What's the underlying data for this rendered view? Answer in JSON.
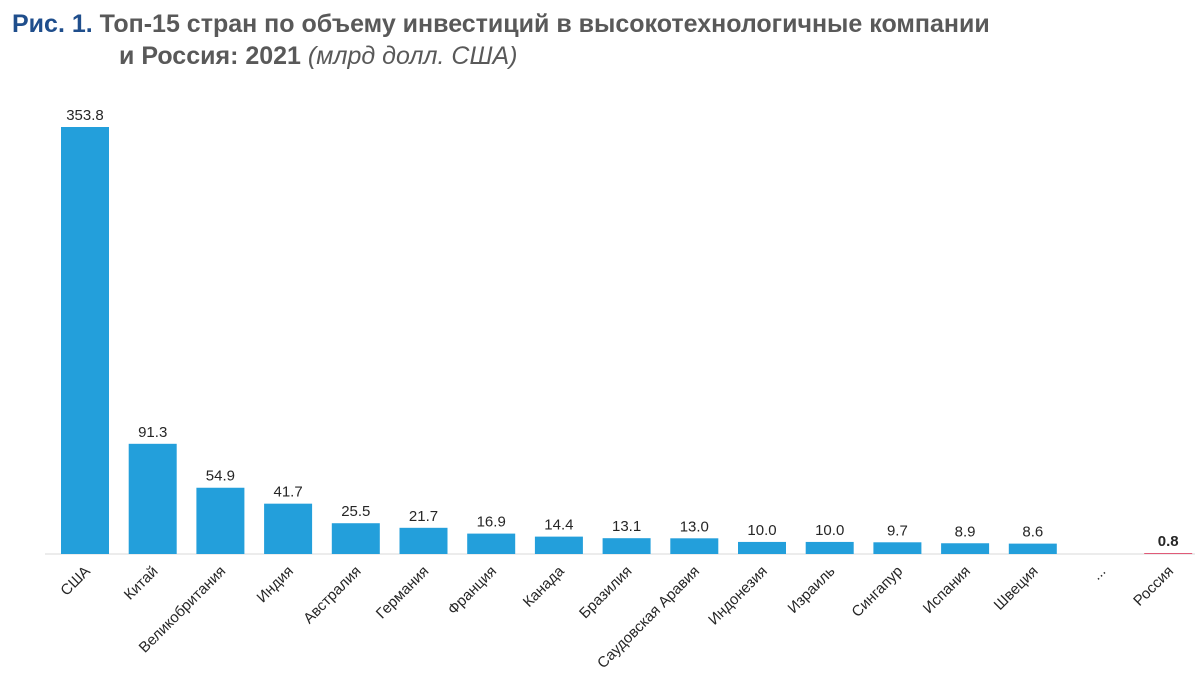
{
  "title": {
    "fig_label": "Рис. 1.",
    "line1": "Топ-15 стран по объему инвестиций в высокотехнологичные компании",
    "line2": "и Россия: 2021",
    "unit": "(млрд долл. США)"
  },
  "chart_data": {
    "type": "bar",
    "title": "Топ-15 стран по объему инвестиций в высокотехнологичные компании и Россия: 2021",
    "ylabel": "млрд долл. США",
    "xlabel": "",
    "ylim": [
      0,
      353.8
    ],
    "grid": false,
    "categories": [
      "США",
      "Китай",
      "Великобритания",
      "Индия",
      "Австралия",
      "Германия",
      "Франция",
      "Канада",
      "Бразилия",
      "Саудовская Аравия",
      "Индонезия",
      "Израиль",
      "Сингапур",
      "Испания",
      "Швеция",
      "...",
      "Россия"
    ],
    "values": [
      353.8,
      91.3,
      54.9,
      41.7,
      25.5,
      21.7,
      16.9,
      14.4,
      13.1,
      13.0,
      10.0,
      10.0,
      9.7,
      8.9,
      8.6,
      null,
      0.8
    ],
    "value_labels": [
      "353.8",
      "91.3",
      "54.9",
      "41.7",
      "25.5",
      "21.7",
      "16.9",
      "14.4",
      "13.1",
      "13.0",
      "10.0",
      "10.0",
      "9.7",
      "8.9",
      "8.6",
      "",
      "0.8"
    ],
    "colors": {
      "default": "#239fdb",
      "highlight": "#e05a78",
      "axis": "#d9d9d9"
    }
  }
}
